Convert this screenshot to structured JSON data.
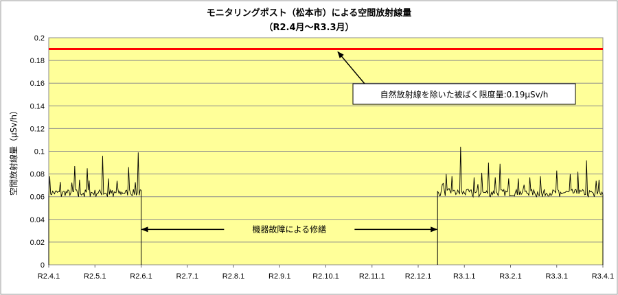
{
  "chart_data": {
    "type": "line",
    "title_line1": "モニタリングポスト（松本市）による空間放射線量",
    "title_line2": "（R2.4月～R3.3月）",
    "ylabel": "空間放射線量（μSv/h）",
    "xlabel": "",
    "ylim": [
      0,
      0.2
    ],
    "yticks": [
      "0",
      "0.02",
      "0.04",
      "0.06",
      "0.08",
      "0.1",
      "0.12",
      "0.14",
      "0.16",
      "0.18",
      "0.2"
    ],
    "x_tick_labels": [
      "R2.4.1",
      "R2.5.1",
      "R2.6.1",
      "R2.7.1",
      "R2.8.1",
      "R2.9.1",
      "R2.10.1",
      "R2.11.1",
      "R2.12.1",
      "R3.1.1",
      "R3.2.1",
      "R3.3.1",
      "R3.4.1"
    ],
    "grid": true,
    "plot_background": "#ffff99",
    "series": [
      {
        "color": "#000000",
        "segments": [
          {
            "start": "R2.4.1",
            "end": "R2.6.1",
            "baseline": 0.0635,
            "low": 0.06,
            "spikes": [
              {
                "pos": 0.01,
                "value": 0.078
              },
              {
                "pos": 0.12,
                "value": 0.073
              },
              {
                "pos": 0.28,
                "value": 0.087
              },
              {
                "pos": 0.33,
                "value": 0.075
              },
              {
                "pos": 0.42,
                "value": 0.085
              },
              {
                "pos": 0.58,
                "value": 0.096
              },
              {
                "pos": 0.65,
                "value": 0.076
              },
              {
                "pos": 0.74,
                "value": 0.074
              },
              {
                "pos": 0.86,
                "value": 0.086
              },
              {
                "pos": 0.97,
                "value": 0.099
              }
            ]
          },
          {
            "start": "R2.12.14",
            "end": "R3.4.1",
            "baseline": 0.0635,
            "low": 0.06,
            "spikes": [
              {
                "pos": 0.03,
                "value": 0.071
              },
              {
                "pos": 0.05,
                "value": 0.08
              },
              {
                "pos": 0.09,
                "value": 0.078
              },
              {
                "pos": 0.14,
                "value": 0.104
              },
              {
                "pos": 0.22,
                "value": 0.077
              },
              {
                "pos": 0.27,
                "value": 0.081
              },
              {
                "pos": 0.31,
                "value": 0.09
              },
              {
                "pos": 0.35,
                "value": 0.077
              },
              {
                "pos": 0.38,
                "value": 0.089
              },
              {
                "pos": 0.43,
                "value": 0.076
              },
              {
                "pos": 0.49,
                "value": 0.076
              },
              {
                "pos": 0.56,
                "value": 0.077
              },
              {
                "pos": 0.62,
                "value": 0.078
              },
              {
                "pos": 0.72,
                "value": 0.083
              },
              {
                "pos": 0.8,
                "value": 0.08
              },
              {
                "pos": 0.85,
                "value": 0.082
              },
              {
                "pos": 0.9,
                "value": 0.092
              },
              {
                "pos": 0.96,
                "value": 0.074
              }
            ]
          }
        ]
      }
    ],
    "reference_line": {
      "value": 0.19,
      "color": "#ff0000",
      "label": "自然放射線を除いた被ばく限度量:0.19μSv/h"
    },
    "gap_annotation": {
      "label": "機器故障による修繕",
      "from": "R2.6.1",
      "to": "R2.12.14",
      "value": 0.03
    }
  }
}
